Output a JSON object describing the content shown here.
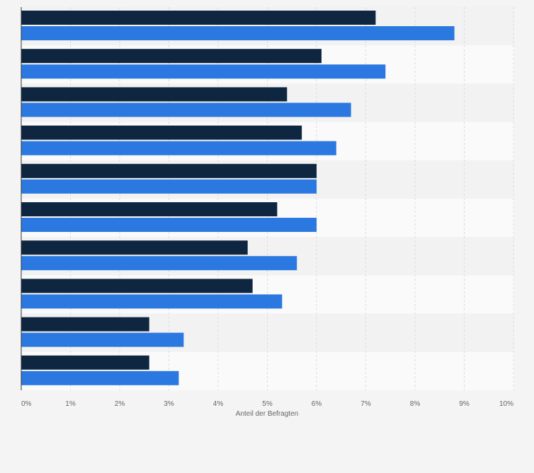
{
  "chart_data": {
    "type": "bar",
    "orientation": "horizontal",
    "xlabel": "Anteil der Befragten",
    "xlim": [
      0,
      10
    ],
    "x_tick_labels": [
      "0%",
      "1%",
      "2%",
      "3%",
      "4%",
      "5%",
      "6%",
      "7%",
      "8%",
      "9%",
      "10%"
    ],
    "grid": true,
    "legend": "none",
    "series": [
      {
        "color": "#0f2640",
        "values": [
          7.2,
          6.1,
          5.4,
          5.7,
          6.0,
          5.2,
          4.6,
          4.7,
          2.6,
          2.6
        ]
      },
      {
        "color": "#2b78e0",
        "values": [
          8.8,
          7.4,
          6.7,
          6.4,
          6.0,
          6.0,
          5.6,
          5.3,
          3.3,
          3.2
        ]
      }
    ]
  }
}
